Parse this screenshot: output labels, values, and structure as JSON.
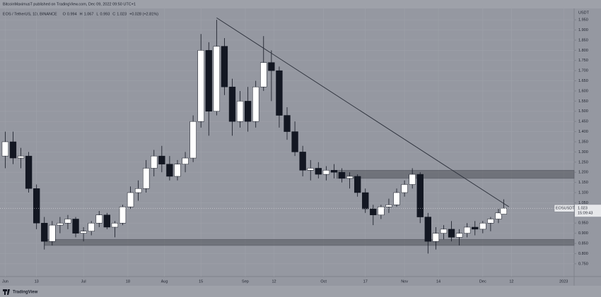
{
  "published": "BitcoinMaximusT published on TradingView.com, Dec 09, 2022 09:50 UTC+1",
  "brand": "TradingView",
  "chart_data": {
    "type": "candlestick",
    "header": "EOS / TetherUS, 1D, BINANCE",
    "ohlc_labels": [
      "O",
      "H",
      "L",
      "C"
    ],
    "change": "+0.028 (+2.81%)",
    "y_axis_label": "USDT",
    "countdown": "15:09:43",
    "x": [
      "2022-06-01",
      "2022-06-04",
      "2022-06-07",
      "2022-06-10",
      "2022-06-13",
      "2022-06-16",
      "2022-06-19",
      "2022-06-22",
      "2022-06-25",
      "2022-06-28",
      "2022-07-01",
      "2022-07-04",
      "2022-07-07",
      "2022-07-10",
      "2022-07-13",
      "2022-07-16",
      "2022-07-19",
      "2022-07-22",
      "2022-07-25",
      "2022-07-28",
      "2022-07-31",
      "2022-08-03",
      "2022-08-06",
      "2022-08-09",
      "2022-08-12",
      "2022-08-15",
      "2022-08-18",
      "2022-08-21",
      "2022-08-24",
      "2022-08-27",
      "2022-08-30",
      "2022-09-02",
      "2022-09-05",
      "2022-09-08",
      "2022-09-11",
      "2022-09-14",
      "2022-09-17",
      "2022-09-20",
      "2022-09-23",
      "2022-09-26",
      "2022-09-29",
      "2022-10-02",
      "2022-10-05",
      "2022-10-08",
      "2022-10-11",
      "2022-10-14",
      "2022-10-17",
      "2022-10-20",
      "2022-10-23",
      "2022-10-26",
      "2022-10-29",
      "2022-11-01",
      "2022-11-04",
      "2022-11-07",
      "2022-11-10",
      "2022-11-13",
      "2022-11-16",
      "2022-11-19",
      "2022-11-22",
      "2022-11-25",
      "2022-11-28",
      "2022-12-01",
      "2022-12-04",
      "2022-12-07",
      "2022-12-09"
    ],
    "series": [
      {
        "name": "EOSUSDT",
        "up_color": "#ffffff",
        "down_color": "#131722",
        "open": [
          1.28,
          1.35,
          1.27,
          1.28,
          1.12,
          0.95,
          0.86,
          0.94,
          0.95,
          0.97,
          0.9,
          0.91,
          0.95,
          0.99,
          0.93,
          0.95,
          1.03,
          1.1,
          1.12,
          1.22,
          1.28,
          1.24,
          1.18,
          1.24,
          1.27,
          1.45,
          1.8,
          1.5,
          1.82,
          1.62,
          1.45,
          1.55,
          1.45,
          1.62,
          1.74,
          1.7,
          1.48,
          1.4,
          1.3,
          1.21,
          1.22,
          1.19,
          1.21,
          1.2,
          1.17,
          1.18,
          1.1,
          1.02,
          0.99,
          1.03,
          1.04,
          1.1,
          1.14,
          1.19,
          0.98,
          0.86,
          0.9,
          0.92,
          0.88,
          0.9,
          0.93,
          0.92,
          0.95,
          0.97,
          0.994
        ],
        "high": [
          1.4,
          1.4,
          1.32,
          1.3,
          1.14,
          0.98,
          0.96,
          0.98,
          0.99,
          0.98,
          0.93,
          0.96,
          1.01,
          1.0,
          0.96,
          1.04,
          1.13,
          1.16,
          1.26,
          1.31,
          1.33,
          1.28,
          1.26,
          1.3,
          1.48,
          1.88,
          1.84,
          1.95,
          1.86,
          1.66,
          1.6,
          1.62,
          1.65,
          1.87,
          1.8,
          1.72,
          1.52,
          1.45,
          1.33,
          1.26,
          1.25,
          1.23,
          1.24,
          1.22,
          1.2,
          1.19,
          1.12,
          1.04,
          1.04,
          1.07,
          1.12,
          1.16,
          1.22,
          1.2,
          1.0,
          0.93,
          0.94,
          0.96,
          0.92,
          0.95,
          0.96,
          0.96,
          0.98,
          1.02,
          1.067
        ],
        "low": [
          1.22,
          1.24,
          1.22,
          1.1,
          0.92,
          0.82,
          0.84,
          0.9,
          0.92,
          0.88,
          0.86,
          0.89,
          0.93,
          0.92,
          0.88,
          0.94,
          1.02,
          1.06,
          1.1,
          1.18,
          1.2,
          1.16,
          1.16,
          1.2,
          1.25,
          1.42,
          1.38,
          1.48,
          1.58,
          1.38,
          1.42,
          1.4,
          1.42,
          1.6,
          1.55,
          1.42,
          1.36,
          1.28,
          1.18,
          1.16,
          1.17,
          1.16,
          1.17,
          1.15,
          1.12,
          1.08,
          1.0,
          0.94,
          0.97,
          1.0,
          1.03,
          1.08,
          1.12,
          0.95,
          0.8,
          0.82,
          0.87,
          0.86,
          0.84,
          0.88,
          0.89,
          0.9,
          0.91,
          0.95,
          0.993
        ],
        "close": [
          1.35,
          1.27,
          1.28,
          1.12,
          0.95,
          0.86,
          0.94,
          0.95,
          0.97,
          0.9,
          0.91,
          0.95,
          0.99,
          0.93,
          0.95,
          1.03,
          1.1,
          1.12,
          1.22,
          1.28,
          1.24,
          1.18,
          1.24,
          1.27,
          1.45,
          1.8,
          1.5,
          1.82,
          1.62,
          1.45,
          1.55,
          1.45,
          1.62,
          1.74,
          1.7,
          1.48,
          1.4,
          1.3,
          1.21,
          1.22,
          1.19,
          1.21,
          1.2,
          1.17,
          1.18,
          1.1,
          1.02,
          0.99,
          1.03,
          1.04,
          1.1,
          1.14,
          1.19,
          0.98,
          0.86,
          0.9,
          0.92,
          0.88,
          0.9,
          0.93,
          0.92,
          0.95,
          0.97,
          1.0,
          1.023
        ]
      }
    ],
    "trendline": {
      "x": [
        "2022-08-21",
        "2022-12-11"
      ],
      "y": [
        1.96,
        1.03
      ],
      "color": "#2a2e39"
    },
    "zones": [
      {
        "x": [
          "2022-06-16",
          "2023-01-05"
        ],
        "y": [
          0.84,
          0.87
        ]
      },
      {
        "x": [
          "2022-10-06",
          "2023-01-05"
        ],
        "y": [
          1.17,
          1.21
        ]
      }
    ],
    "xlim": [
      "2022-05-30",
      "2023-01-05"
    ],
    "xticks": [
      {
        "value": "2022-06-01",
        "label": "Jun"
      },
      {
        "value": "2022-06-13",
        "label": "13"
      },
      {
        "value": "2022-07-01",
        "label": "Jul"
      },
      {
        "value": "2022-07-18",
        "label": "18"
      },
      {
        "value": "2022-08-01",
        "label": "Aug"
      },
      {
        "value": "2022-08-15",
        "label": "15"
      },
      {
        "value": "2022-09-01",
        "label": "Sep"
      },
      {
        "value": "2022-09-12",
        "label": "12"
      },
      {
        "value": "2022-10-01",
        "label": "Oct"
      },
      {
        "value": "2022-10-17",
        "label": "17"
      },
      {
        "value": "2022-11-01",
        "label": "Nov"
      },
      {
        "value": "2022-11-14",
        "label": "14"
      },
      {
        "value": "2022-12-01",
        "label": "Dec"
      },
      {
        "value": "2022-12-12",
        "label": "12"
      },
      {
        "value": "2023-01-01",
        "label": "2023"
      }
    ],
    "ylim": [
      0.687,
      2.006
    ],
    "yticks": [
      {
        "value": 0.75,
        "label": "0.750"
      },
      {
        "value": 0.8,
        "label": "0.800"
      },
      {
        "value": 0.85,
        "label": "0.850"
      },
      {
        "value": 0.9,
        "label": "0.900"
      },
      {
        "value": 0.95,
        "label": "0.950"
      },
      {
        "value": 1.0,
        "label": "1.000"
      },
      {
        "value": 1.05,
        "label": "1.050"
      },
      {
        "value": 1.1,
        "label": "1.100"
      },
      {
        "value": 1.15,
        "label": "1.150"
      },
      {
        "value": 1.2,
        "label": "1.200"
      },
      {
        "value": 1.25,
        "label": "1.250"
      },
      {
        "value": 1.3,
        "label": "1.300"
      },
      {
        "value": 1.35,
        "label": "1.350"
      },
      {
        "value": 1.4,
        "label": "1.400"
      },
      {
        "value": 1.45,
        "label": "1.450"
      },
      {
        "value": 1.5,
        "label": "1.500"
      },
      {
        "value": 1.55,
        "label": "1.550"
      },
      {
        "value": 1.6,
        "label": "1.600"
      },
      {
        "value": 1.65,
        "label": "1.650"
      },
      {
        "value": 1.7,
        "label": "1.700"
      },
      {
        "value": 1.75,
        "label": "1.750"
      },
      {
        "value": 1.8,
        "label": "1.800"
      },
      {
        "value": 1.85,
        "label": "1.850"
      },
      {
        "value": 1.9,
        "label": "1.900"
      },
      {
        "value": 1.95,
        "label": "1.950"
      }
    ],
    "grid": true
  }
}
